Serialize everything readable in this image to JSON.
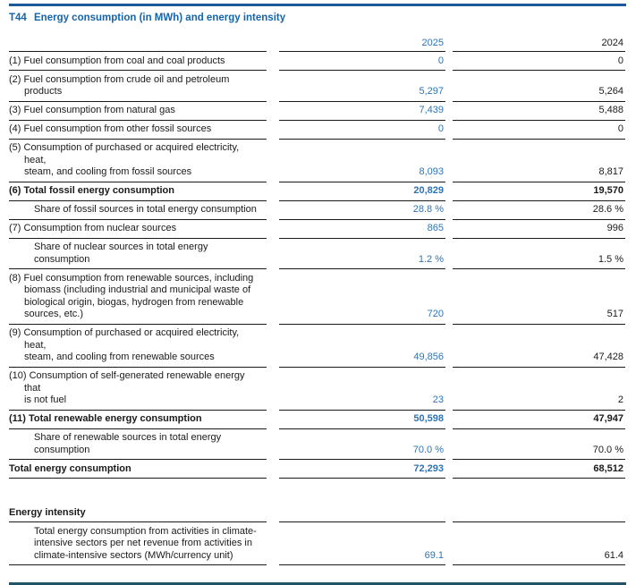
{
  "title": {
    "tag": "T44",
    "text": "Energy consumption (in MWh) and energy intensity"
  },
  "columns": {
    "col2025": "2025",
    "col2024": "2024"
  },
  "colors": {
    "accent": "#1565ab",
    "value_blue": "#2e74b5",
    "rule_top": "#1a5a98",
    "rule_bottom": "#215369",
    "text": "#1a1a1a"
  },
  "table": {
    "rows": [
      {
        "label": [
          "(1) Fuel consumption from coal and coal products"
        ],
        "v2025": "0",
        "v2024": "0",
        "bold": false,
        "indent": "hang"
      },
      {
        "label": [
          "(2) Fuel consumption from crude oil and petroleum products"
        ],
        "v2025": "5,297",
        "v2024": "5,264",
        "bold": false,
        "indent": "hang"
      },
      {
        "label": [
          "(3) Fuel consumption from natural gas"
        ],
        "v2025": "7,439",
        "v2024": "5,488",
        "bold": false,
        "indent": "hang"
      },
      {
        "label": [
          "(4) Fuel consumption from other fossil sources"
        ],
        "v2025": "0",
        "v2024": "0",
        "bold": false,
        "indent": "hang"
      },
      {
        "label": [
          "(5) Consumption of purchased or acquired electricity, heat,",
          "steam, and cooling from fossil sources"
        ],
        "v2025": "8,093",
        "v2024": "8,817",
        "bold": false,
        "indent": "hang"
      },
      {
        "label": [
          "(6) Total fossil energy consumption"
        ],
        "v2025": "20,829",
        "v2024": "19,570",
        "bold": true,
        "indent": "hang"
      },
      {
        "label": [
          "Share of fossil sources in total energy consumption"
        ],
        "v2025": "28.8 %",
        "v2024": "28.6 %",
        "bold": false,
        "indent": "sub"
      },
      {
        "label": [
          "(7) Consumption from nuclear sources"
        ],
        "v2025": "865",
        "v2024": "996",
        "bold": false,
        "indent": "hang"
      },
      {
        "label": [
          "Share of nuclear sources in total energy consumption"
        ],
        "v2025": "1.2 %",
        "v2024": "1.5 %",
        "bold": false,
        "indent": "sub"
      },
      {
        "label": [
          "(8) Fuel consumption from renewable sources, including",
          "biomass (including industrial and municipal waste of",
          "biological origin, biogas, hydrogen from renewable",
          "sources, etc.)"
        ],
        "v2025": "720",
        "v2024": "517",
        "bold": false,
        "indent": "hang"
      },
      {
        "label": [
          "(9) Consumption of purchased or acquired electricity, heat,",
          "steam, and cooling from renewable sources"
        ],
        "v2025": "49,856",
        "v2024": "47,428",
        "bold": false,
        "indent": "hang"
      },
      {
        "label": [
          "(10) Consumption of self-generated renewable energy that",
          "is not fuel"
        ],
        "v2025": "23",
        "v2024": "2",
        "bold": false,
        "indent": "hang"
      },
      {
        "label": [
          "(11) Total renewable energy consumption"
        ],
        "v2025": "50,598",
        "v2024": "47,947",
        "bold": true,
        "indent": "hang"
      },
      {
        "label": [
          "Share of renewable sources in total energy consumption"
        ],
        "v2025": "70.0 %",
        "v2024": "70.0 %",
        "bold": false,
        "indent": "sub"
      },
      {
        "label": [
          "Total energy consumption"
        ],
        "v2025": "72,293",
        "v2024": "68,512",
        "bold": true,
        "indent": "none"
      }
    ]
  },
  "energy_intensity": {
    "header": "Energy intensity",
    "rows": [
      {
        "label": [
          "Total energy consumption from activities in climate-",
          "intensive sectors per net revenue from activities in",
          "climate-intensive sectors (MWh/currency unit)"
        ],
        "v2025": "69.1",
        "v2024": "61.4",
        "bold": false,
        "indent": "sub"
      }
    ]
  }
}
